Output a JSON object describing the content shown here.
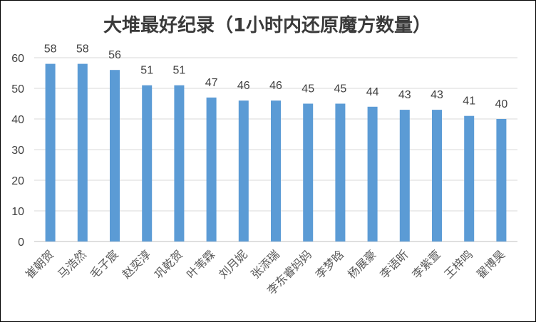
{
  "chart_data": {
    "type": "bar",
    "title": "大堆最好纪录（1小时内还原魔方数量）",
    "categories": [
      "崔朝贺",
      "马浩然",
      "毛子宸",
      "赵奕淳",
      "巩乾贺",
      "叶苇霖",
      "刘月妮",
      "张添瑞",
      "李东睿妈妈",
      "李梦晗",
      "杨展豪",
      "李语昕",
      "李紫萱",
      "王梓鸣",
      "翟博昊"
    ],
    "values": [
      58,
      58,
      56,
      51,
      51,
      47,
      46,
      46,
      45,
      45,
      44,
      43,
      43,
      41,
      40
    ],
    "ylim": [
      0,
      60
    ],
    "yticks": [
      0,
      10,
      20,
      30,
      40,
      50,
      60
    ],
    "grid": true,
    "legend": "none",
    "xlabel": "",
    "ylabel": "",
    "colors": {
      "bar": "#5b9bd5"
    }
  }
}
